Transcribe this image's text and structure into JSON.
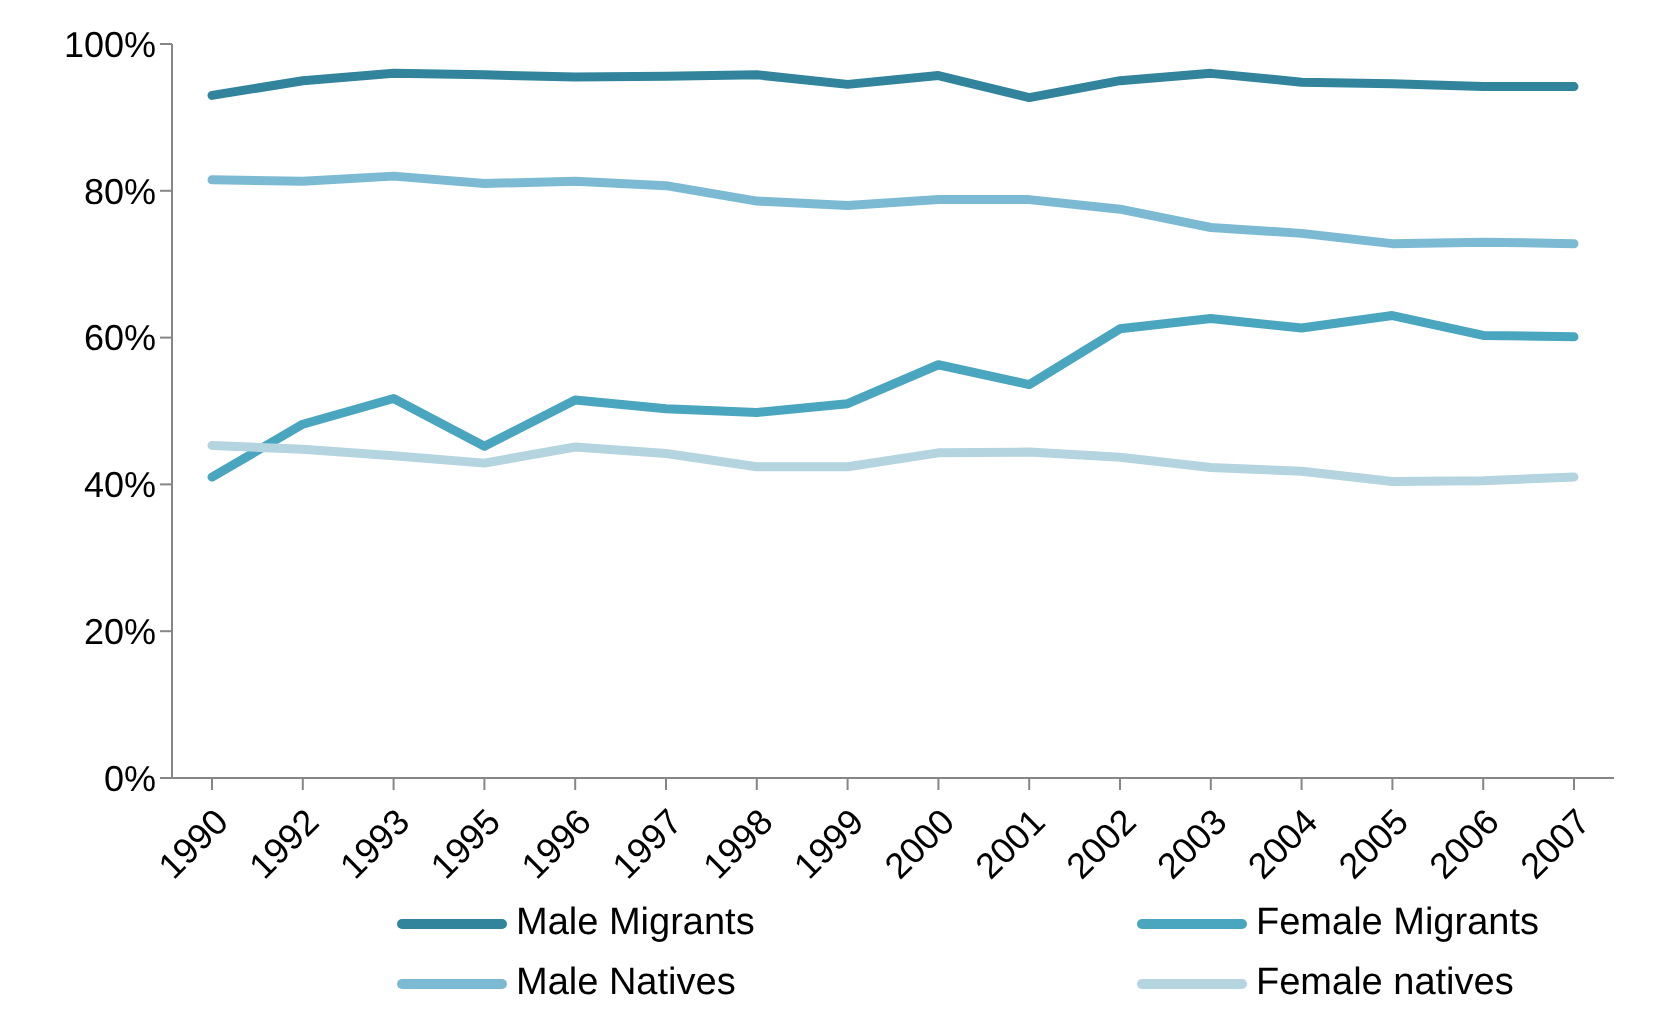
{
  "chart_data": {
    "type": "line",
    "categories": [
      "1990",
      "1992",
      "1993",
      "1995",
      "1996",
      "1997",
      "1998",
      "1999",
      "2000",
      "2001",
      "2002",
      "2003",
      "2004",
      "2005",
      "2006",
      "2007"
    ],
    "series": [
      {
        "name": "Male Migrants",
        "color": "#31849b",
        "values": [
          93,
          95,
          96,
          95.8,
          95.5,
          95.6,
          95.8,
          94.5,
          95.7,
          92.7,
          95,
          96,
          94.8,
          94.6,
          94.2,
          94.2
        ]
      },
      {
        "name": "Female Migrants",
        "color": "#4aa5be",
        "values": [
          41,
          48.2,
          51.7,
          45.2,
          51.5,
          50.3,
          49.8,
          51,
          56.3,
          53.6,
          61.2,
          62.6,
          61.3,
          63,
          60.3,
          60.1
        ]
      },
      {
        "name": "Male Natives",
        "color": "#7cbad3",
        "values": [
          81.5,
          81.3,
          82,
          81,
          81.3,
          80.7,
          78.6,
          78,
          78.8,
          78.8,
          77.5,
          75,
          74.2,
          72.8,
          73,
          72.8
        ]
      },
      {
        "name": "Female natives",
        "color": "#b4d4df",
        "values": [
          45.3,
          44.8,
          43.9,
          42.9,
          45.1,
          44.2,
          42.4,
          42.4,
          44.3,
          44.4,
          43.7,
          42.3,
          41.8,
          40.4,
          40.5,
          41
        ]
      }
    ],
    "ylim": [
      0,
      100
    ],
    "yticks": [
      {
        "value": 0,
        "label": "0%"
      },
      {
        "value": 20,
        "label": "20%"
      },
      {
        "value": 40,
        "label": "40%"
      },
      {
        "value": 60,
        "label": "60%"
      },
      {
        "value": 80,
        "label": "80%"
      },
      {
        "value": 100,
        "label": "100%"
      }
    ],
    "grid": false,
    "legend": "bottom",
    "marker": "none",
    "line_style": "solid"
  }
}
